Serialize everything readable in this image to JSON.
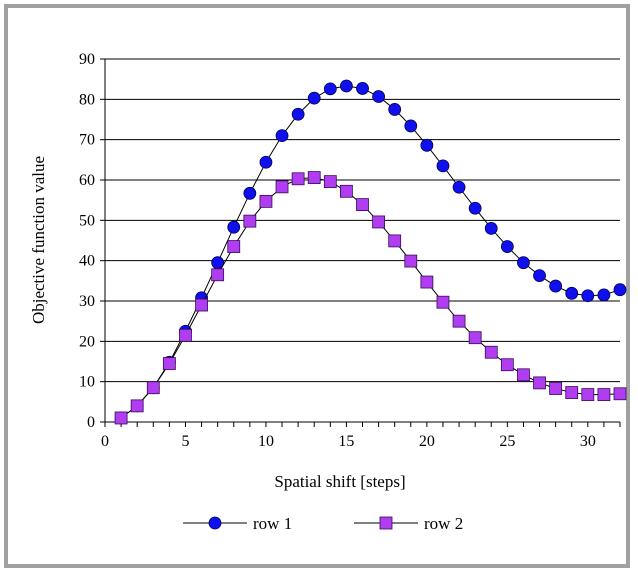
{
  "chart_data": {
    "type": "line",
    "title": "",
    "xlabel": "Spatial shift [steps]",
    "ylabel": "Objective function value",
    "xlim": [
      0,
      32
    ],
    "ylim": [
      0,
      90
    ],
    "x_ticks": [
      0,
      5,
      10,
      15,
      20,
      25,
      30
    ],
    "y_ticks": [
      0,
      10,
      20,
      30,
      40,
      50,
      60,
      70,
      80,
      90
    ],
    "grid": "horizontal",
    "legend_position": "bottom",
    "x": [
      1,
      2,
      3,
      4,
      5,
      6,
      7,
      8,
      9,
      10,
      11,
      12,
      13,
      14,
      15,
      16,
      17,
      18,
      19,
      20,
      21,
      22,
      23,
      24,
      25,
      26,
      27,
      28,
      29,
      30,
      31,
      32
    ],
    "series": [
      {
        "name": "row 1",
        "marker": "circle",
        "color": "#1010ee",
        "values": [
          1,
          4,
          8.5,
          14.8,
          22.5,
          30.8,
          39.5,
          48.3,
          56.7,
          64.4,
          71,
          76.3,
          80.3,
          82.6,
          83.3,
          82.7,
          80.7,
          77.5,
          73.4,
          68.6,
          63.5,
          58.2,
          53,
          48,
          43.5,
          39.5,
          36.3,
          33.7,
          31.9,
          31.3,
          31.5,
          32.8
        ]
      },
      {
        "name": "row 2",
        "marker": "square",
        "color": "#b03ef0",
        "values": [
          1,
          4,
          8.5,
          14.5,
          21.5,
          29,
          36.5,
          43.5,
          49.8,
          54.7,
          58.3,
          60.3,
          60.6,
          59.6,
          57.2,
          53.9,
          49.6,
          44.9,
          39.9,
          34.7,
          29.7,
          25,
          20.9,
          17.3,
          14.2,
          11.7,
          9.7,
          8.3,
          7.3,
          6.8,
          6.8,
          7
        ]
      }
    ]
  }
}
